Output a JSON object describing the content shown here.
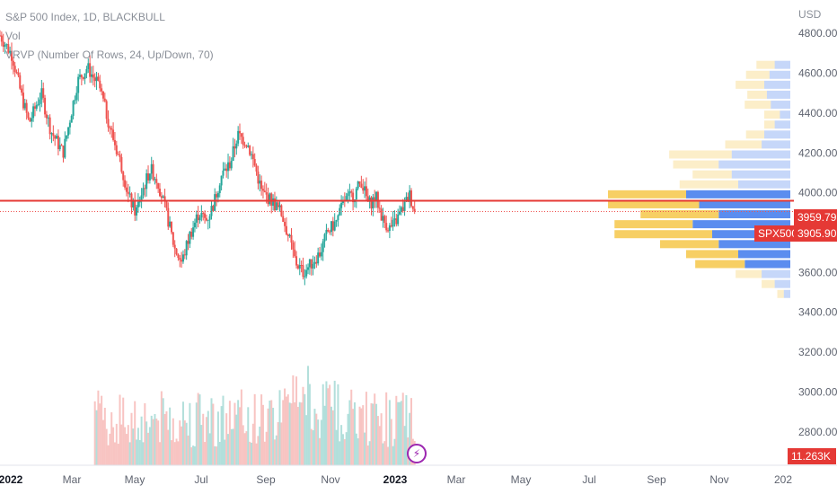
{
  "legend": {
    "symbol_line": "S&P 500 Index, 1D, BLACKBULL",
    "vol_label": "Vol",
    "vrvp_label": "VRVP (Number Of Rows, 24, Up/Down, 70)"
  },
  "currency_label": "USD",
  "colors": {
    "up": "#26a69a",
    "down": "#ef5350",
    "price_line": "#e53935",
    "vp_up": "#5b8def",
    "vp_down": "#f7cf64",
    "last_label_bg": "#e53935",
    "volume_label_bg": "#e53935",
    "flash_icon": "#9c27b0"
  },
  "icons": {
    "flash": "lightning-bolt-icon"
  },
  "flash_icon_glyph": "⚡",
  "price_labels": {
    "last_value": "3959.79",
    "symbol_tag": "SPX500",
    "close_value": "3905.90",
    "volume_value": "11.263K"
  },
  "chart_data": {
    "type": "candlestick",
    "title": "S&P 500 Index, 1D, BLACKBULL",
    "ylim": [
      2700,
      4900
    ],
    "y_ticks": [
      "4800.00",
      "4600.00",
      "4400.00",
      "4200.00",
      "4000.00",
      "3800.00",
      "3600.00",
      "3400.00",
      "3200.00",
      "3000.00",
      "2800.00"
    ],
    "y_tick_values": [
      4800,
      4600,
      4400,
      4200,
      4000,
      3800,
      3600,
      3400,
      3200,
      3000,
      2800
    ],
    "x_ticks": [
      "2022",
      "Mar",
      "May",
      "Jul",
      "Sep",
      "Nov",
      "2023",
      "Mar",
      "May",
      "Jul",
      "Sep",
      "Nov",
      "202"
    ],
    "x_bold_ticks": [
      "2022",
      "2023"
    ],
    "horizontal_line": 3959.79,
    "close_line": 3905.9,
    "price_path": [
      {
        "t": 0.0,
        "p": 4790
      },
      {
        "t": 0.05,
        "p": 4690
      },
      {
        "t": 0.09,
        "p": 4480
      },
      {
        "t": 0.12,
        "p": 4350
      },
      {
        "t": 0.17,
        "p": 4500
      },
      {
        "t": 0.21,
        "p": 4310
      },
      {
        "t": 0.26,
        "p": 4200
      },
      {
        "t": 0.32,
        "p": 4560
      },
      {
        "t": 0.36,
        "p": 4630
      },
      {
        "t": 0.41,
        "p": 4530
      },
      {
        "t": 0.46,
        "p": 4300
      },
      {
        "t": 0.5,
        "p": 4140
      },
      {
        "t": 0.53,
        "p": 3980
      },
      {
        "t": 0.56,
        "p": 3900
      },
      {
        "t": 0.59,
        "p": 4020
      },
      {
        "t": 0.62,
        "p": 4120
      },
      {
        "t": 0.65,
        "p": 4060
      },
      {
        "t": 0.69,
        "p": 3880
      },
      {
        "t": 0.72,
        "p": 3720
      },
      {
        "t": 0.75,
        "p": 3650
      },
      {
        "t": 0.78,
        "p": 3780
      },
      {
        "t": 0.82,
        "p": 3900
      },
      {
        "t": 0.85,
        "p": 3860
      },
      {
        "t": 0.88,
        "p": 3940
      },
      {
        "t": 0.91,
        "p": 4080
      },
      {
        "t": 0.95,
        "p": 4150
      },
      {
        "t": 0.98,
        "p": 4290
      },
      {
        "t": 1.02,
        "p": 4250
      },
      {
        "t": 1.05,
        "p": 4140
      },
      {
        "t": 1.08,
        "p": 4000
      },
      {
        "t": 1.12,
        "p": 3960
      },
      {
        "t": 1.16,
        "p": 3900
      },
      {
        "t": 1.19,
        "p": 3780
      },
      {
        "t": 1.22,
        "p": 3650
      },
      {
        "t": 1.25,
        "p": 3600
      },
      {
        "t": 1.28,
        "p": 3640
      },
      {
        "t": 1.32,
        "p": 3700
      },
      {
        "t": 1.35,
        "p": 3800
      },
      {
        "t": 1.39,
        "p": 3860
      },
      {
        "t": 1.42,
        "p": 3960
      },
      {
        "t": 1.46,
        "p": 3990
      },
      {
        "t": 1.49,
        "p": 4060
      },
      {
        "t": 1.52,
        "p": 3940
      },
      {
        "t": 1.55,
        "p": 3980
      },
      {
        "t": 1.58,
        "p": 3860
      },
      {
        "t": 1.61,
        "p": 3820
      },
      {
        "t": 1.63,
        "p": 3850
      },
      {
        "t": 1.66,
        "p": 3920
      },
      {
        "t": 1.69,
        "p": 3990
      },
      {
        "t": 1.71,
        "p": 3905
      }
    ],
    "volume_profile": [
      {
        "price": 4640,
        "up": 12,
        "down": 14
      },
      {
        "price": 4590,
        "up": 16,
        "down": 18
      },
      {
        "price": 4540,
        "up": 20,
        "down": 22
      },
      {
        "price": 4490,
        "up": 18,
        "down": 15
      },
      {
        "price": 4440,
        "up": 15,
        "down": 20
      },
      {
        "price": 4390,
        "up": 8,
        "down": 12
      },
      {
        "price": 4340,
        "up": 12,
        "down": 8
      },
      {
        "price": 4290,
        "up": 20,
        "down": 14
      },
      {
        "price": 4240,
        "up": 22,
        "down": 28
      },
      {
        "price": 4190,
        "up": 45,
        "down": 48
      },
      {
        "price": 4140,
        "up": 55,
        "down": 35
      },
      {
        "price": 4090,
        "up": 45,
        "down": 30
      },
      {
        "price": 4040,
        "up": 40,
        "down": 45
      },
      {
        "price": 3990,
        "up": 80,
        "down": 60
      },
      {
        "price": 3940,
        "up": 70,
        "down": 70
      },
      {
        "price": 3890,
        "up": 55,
        "down": 60
      },
      {
        "price": 3840,
        "up": 75,
        "down": 60
      },
      {
        "price": 3790,
        "up": 60,
        "down": 75
      },
      {
        "price": 3740,
        "up": 55,
        "down": 45
      },
      {
        "price": 3690,
        "up": 40,
        "down": 40
      },
      {
        "price": 3640,
        "up": 35,
        "down": 38
      },
      {
        "price": 3590,
        "up": 22,
        "down": 20
      },
      {
        "price": 3540,
        "up": 12,
        "down": 10
      },
      {
        "price": 3490,
        "up": 5,
        "down": 5
      }
    ]
  }
}
